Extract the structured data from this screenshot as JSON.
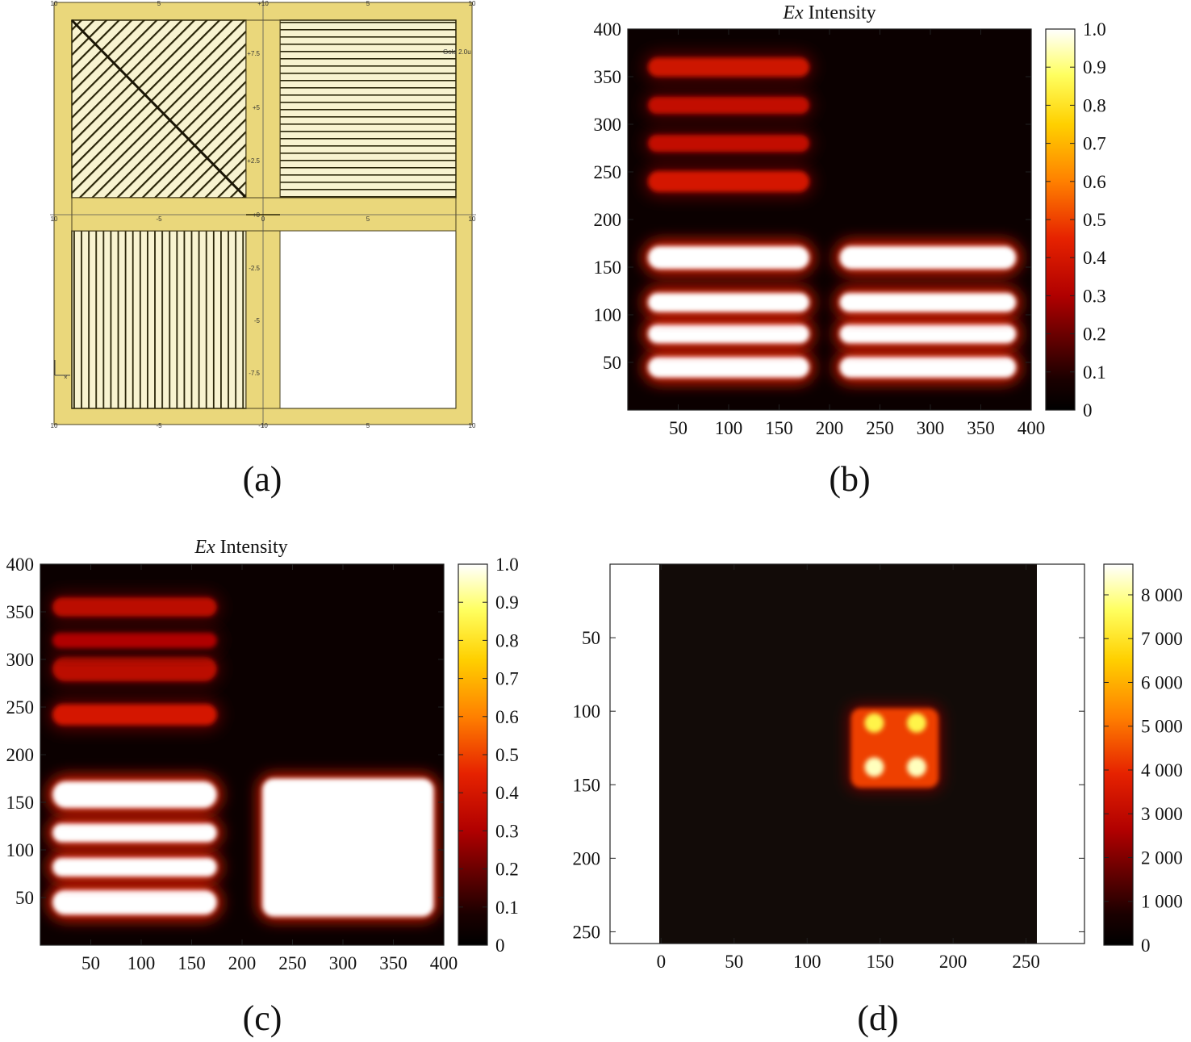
{
  "figure": {
    "captions": [
      "(a)",
      "(b)",
      "(c)",
      "(d)"
    ]
  },
  "panel_a": {
    "top_ticks": [
      "10",
      "5",
      "+10",
      "5",
      "10"
    ],
    "mid_ticks": [
      "10",
      "-5",
      "0",
      "5",
      "10"
    ],
    "bottom_ticks": [
      "10",
      "-5",
      "-10",
      "5",
      "10"
    ],
    "vertical_ticks": [
      "+7.5",
      "+5",
      "+2.5",
      "+0",
      "-2.5",
      "-5",
      "-7.5"
    ],
    "label": "Gold 2.0u",
    "colors": {
      "frame": "#ead77b",
      "frame_edge": "#4a4020",
      "stripe": "#2a2508"
    }
  },
  "chart_data": [
    {
      "id": "b",
      "type": "heatmap",
      "title": "Ex Intensity",
      "title_italic": "Ex",
      "title_rest": " Intensity",
      "xlim": [
        0,
        400
      ],
      "ylim": [
        0,
        400
      ],
      "x_ticks": [
        50,
        100,
        150,
        200,
        250,
        300,
        350,
        400
      ],
      "y_ticks": [
        50,
        100,
        150,
        200,
        250,
        300,
        350,
        400
      ],
      "colorbar": {
        "min": 0,
        "max": 1.0,
        "ticks": [
          "0",
          "0.1",
          "0.2",
          "0.3",
          "0.4",
          "0.5",
          "0.6",
          "0.7",
          "0.8",
          "0.9",
          "1.0"
        ]
      },
      "colormap": "hot",
      "regions": [
        {
          "shape": "bar",
          "x_range": [
            20,
            180
          ],
          "y_center": 45,
          "height": 22,
          "intensity": 1.0
        },
        {
          "shape": "bar",
          "x_range": [
            20,
            180
          ],
          "y_center": 80,
          "height": 20,
          "intensity": 1.0
        },
        {
          "shape": "bar",
          "x_range": [
            20,
            180
          ],
          "y_center": 113,
          "height": 20,
          "intensity": 1.0
        },
        {
          "shape": "bar",
          "x_range": [
            20,
            180
          ],
          "y_center": 160,
          "height": 24,
          "intensity": 1.0
        },
        {
          "shape": "bar",
          "x_range": [
            210,
            385
          ],
          "y_center": 45,
          "height": 22,
          "intensity": 1.0
        },
        {
          "shape": "bar",
          "x_range": [
            210,
            385
          ],
          "y_center": 80,
          "height": 20,
          "intensity": 1.0
        },
        {
          "shape": "bar",
          "x_range": [
            210,
            385
          ],
          "y_center": 113,
          "height": 20,
          "intensity": 1.0
        },
        {
          "shape": "bar",
          "x_range": [
            210,
            385
          ],
          "y_center": 160,
          "height": 24,
          "intensity": 1.0
        },
        {
          "shape": "bar",
          "x_range": [
            20,
            180
          ],
          "y_center": 240,
          "height": 22,
          "intensity": 0.4
        },
        {
          "shape": "bar",
          "x_range": [
            20,
            180
          ],
          "y_center": 280,
          "height": 18,
          "intensity": 0.35
        },
        {
          "shape": "bar",
          "x_range": [
            20,
            180
          ],
          "y_center": 320,
          "height": 18,
          "intensity": 0.35
        },
        {
          "shape": "bar",
          "x_range": [
            20,
            180
          ],
          "y_center": 360,
          "height": 20,
          "intensity": 0.38
        }
      ]
    },
    {
      "id": "c",
      "type": "heatmap",
      "title": "Ex Intensity",
      "title_italic": "Ex",
      "title_rest": " Intensity",
      "xlim": [
        0,
        400
      ],
      "ylim": [
        0,
        400
      ],
      "x_ticks": [
        50,
        100,
        150,
        200,
        250,
        300,
        350,
        400
      ],
      "y_ticks": [
        50,
        100,
        150,
        200,
        250,
        300,
        350,
        400
      ],
      "colorbar": {
        "min": 0,
        "max": 1.0,
        "ticks": [
          "0",
          "0.1",
          "0.2",
          "0.3",
          "0.4",
          "0.5",
          "0.6",
          "0.7",
          "0.8",
          "0.9",
          "1.0"
        ]
      },
      "colormap": "hot",
      "regions": [
        {
          "shape": "bar",
          "x_range": [
            12,
            175
          ],
          "y_center": 45,
          "height": 26,
          "intensity": 1.0
        },
        {
          "shape": "bar",
          "x_range": [
            12,
            175
          ],
          "y_center": 82,
          "height": 20,
          "intensity": 1.0
        },
        {
          "shape": "bar",
          "x_range": [
            12,
            175
          ],
          "y_center": 118,
          "height": 20,
          "intensity": 1.0
        },
        {
          "shape": "bar",
          "x_range": [
            12,
            175
          ],
          "y_center": 158,
          "height": 28,
          "intensity": 1.0
        },
        {
          "shape": "block",
          "x_range": [
            220,
            390
          ],
          "y_range": [
            30,
            175
          ],
          "intensity": 1.0
        },
        {
          "shape": "bar",
          "x_range": [
            12,
            175
          ],
          "y_center": 242,
          "height": 22,
          "intensity": 0.4
        },
        {
          "shape": "bar",
          "x_range": [
            12,
            175
          ],
          "y_center": 290,
          "height": 26,
          "intensity": 0.33
        },
        {
          "shape": "bar",
          "x_range": [
            12,
            175
          ],
          "y_center": 320,
          "height": 16,
          "intensity": 0.3
        },
        {
          "shape": "bar",
          "x_range": [
            12,
            175
          ],
          "y_center": 355,
          "height": 20,
          "intensity": 0.33
        }
      ]
    },
    {
      "id": "d",
      "type": "heatmap",
      "title": "",
      "xlim": [
        -35,
        290
      ],
      "ylim": [
        258,
        0
      ],
      "x_ticks": [
        0,
        50,
        100,
        150,
        200,
        250
      ],
      "y_ticks": [
        50,
        100,
        150,
        200,
        250
      ],
      "colorbar": {
        "min": 0,
        "max": 8700,
        "ticks": [
          "0",
          "1 000",
          "2 000",
          "3 000",
          "4 000",
          "5 000",
          "6 000",
          "7 000",
          "8 000"
        ]
      },
      "colormap": "hot",
      "data_extent_x": [
        0,
        258
      ],
      "regions": [
        {
          "shape": "block",
          "x_range": [
            130,
            190
          ],
          "y_range": [
            98,
            152
          ],
          "intensity": 0.5
        },
        {
          "shape": "spot",
          "x": 146,
          "y": 108,
          "intensity": 0.85
        },
        {
          "shape": "spot",
          "x": 175,
          "y": 108,
          "intensity": 0.85
        },
        {
          "shape": "spot",
          "x": 146,
          "y": 138,
          "intensity": 0.95
        },
        {
          "shape": "spot",
          "x": 175,
          "y": 138,
          "intensity": 0.95
        }
      ]
    }
  ]
}
